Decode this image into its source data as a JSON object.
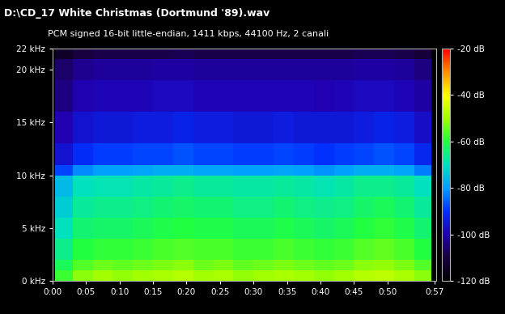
{
  "chart_data": {
    "type": "heatmap",
    "title": "D:\\CD_17 White Christmas (Dortmund '89).wav",
    "subtitle": "PCM signed 16-bit little-endian, 1411 kbps, 44100 Hz, 2 canali",
    "x_edges": [
      0,
      0.4,
      3,
      6,
      9,
      12,
      15,
      18,
      21,
      24,
      27,
      30,
      33,
      36,
      39,
      42,
      45,
      48,
      51,
      54,
      56.6,
      57.3
    ],
    "y_edges": [
      0,
      1,
      2,
      4,
      6,
      8,
      10,
      11,
      13,
      16,
      19,
      21,
      22
    ],
    "cells": [
      [
        -120,
        -58,
        -52,
        -50,
        -51,
        -50,
        -49,
        -48,
        -50,
        -49,
        -51,
        -50,
        -49,
        -50,
        -51,
        -50,
        -48,
        -47,
        -49,
        -52,
        -120
      ],
      [
        -120,
        -62,
        -56,
        -54,
        -55,
        -54,
        -53,
        -52,
        -54,
        -53,
        -55,
        -54,
        -53,
        -54,
        -55,
        -54,
        -52,
        -51,
        -53,
        -56,
        -120
      ],
      [
        -120,
        -66,
        -60,
        -59,
        -59,
        -58,
        -57,
        -56,
        -57,
        -57,
        -58,
        -58,
        -57,
        -58,
        -59,
        -58,
        -56,
        -55,
        -57,
        -60,
        -120
      ],
      [
        -120,
        -70,
        -64,
        -63,
        -63,
        -62,
        -61,
        -60,
        -61,
        -61,
        -62,
        -62,
        -61,
        -62,
        -63,
        -62,
        -60,
        -59,
        -61,
        -64,
        -120
      ],
      [
        -120,
        -73,
        -67,
        -66,
        -66,
        -65,
        -64,
        -63,
        -64,
        -64,
        -65,
        -65,
        -64,
        -65,
        -66,
        -65,
        -63,
        -62,
        -64,
        -67,
        -120
      ],
      [
        -120,
        -76,
        -70,
        -69,
        -69,
        -68,
        -67,
        -66,
        -67,
        -67,
        -68,
        -68,
        -67,
        -68,
        -69,
        -68,
        -66,
        -66,
        -67,
        -70,
        -120
      ],
      [
        -120,
        -88,
        -82,
        -80,
        -80,
        -79,
        -78,
        -78,
        -79,
        -79,
        -80,
        -80,
        -79,
        -80,
        -81,
        -80,
        -78,
        -78,
        -79,
        -83,
        -120
      ],
      [
        -120,
        -96,
        -91,
        -89,
        -89,
        -88,
        -88,
        -87,
        -88,
        -88,
        -89,
        -89,
        -88,
        -89,
        -90,
        -89,
        -88,
        -87,
        -88,
        -92,
        -120
      ],
      [
        -120,
        -100,
        -96,
        -95,
        -95,
        -94,
        -94,
        -93,
        -94,
        -94,
        -95,
        -95,
        -94,
        -95,
        -95,
        -95,
        -94,
        -93,
        -94,
        -97,
        -120
      ],
      [
        -120,
        -104,
        -100,
        -99,
        -99,
        -99,
        -98,
        -98,
        -99,
        -99,
        -99,
        -99,
        -99,
        -99,
        -100,
        -99,
        -98,
        -98,
        -99,
        -101,
        -120
      ],
      [
        -120,
        -106,
        -103,
        -102,
        -102,
        -102,
        -101,
        -101,
        -102,
        -102,
        -102,
        -102,
        -102,
        -102,
        -102,
        -102,
        -101,
        -101,
        -102,
        -104,
        -120
      ],
      [
        -120,
        -114,
        -110,
        -109,
        -109,
        -109,
        -109,
        -108,
        -109,
        -109,
        -109,
        -109,
        -109,
        -109,
        -109,
        -109,
        -108,
        -108,
        -109,
        -111,
        -120
      ]
    ],
    "xlim": [
      0,
      57.3
    ],
    "xticks": [
      {
        "value": 0,
        "label": "0:00"
      },
      {
        "value": 5,
        "label": "0:05"
      },
      {
        "value": 10,
        "label": "0:10"
      },
      {
        "value": 15,
        "label": "0:15"
      },
      {
        "value": 20,
        "label": "0:20"
      },
      {
        "value": 25,
        "label": "0:25"
      },
      {
        "value": 30,
        "label": "0:30"
      },
      {
        "value": 35,
        "label": "0:35"
      },
      {
        "value": 40,
        "label": "0:40"
      },
      {
        "value": 45,
        "label": "0:45"
      },
      {
        "value": 50,
        "label": "0:50"
      },
      {
        "value": 57,
        "label": "0:57"
      }
    ],
    "ylim": [
      0,
      22
    ],
    "yticks": [
      {
        "value": 0,
        "label": "0 kHz"
      },
      {
        "value": 5,
        "label": "5 kHz"
      },
      {
        "value": 10,
        "label": "10 kHz"
      },
      {
        "value": 15,
        "label": "15 kHz"
      },
      {
        "value": 20,
        "label": "20 kHz"
      },
      {
        "value": 22,
        "label": "22 kHz"
      }
    ],
    "colorbar": {
      "range": [
        -120,
        -20
      ],
      "ticks": [
        {
          "value": -20,
          "label": "-20 dB"
        },
        {
          "value": -40,
          "label": "-40 dB"
        },
        {
          "value": -60,
          "label": "-60 dB"
        },
        {
          "value": -80,
          "label": "-80 dB"
        },
        {
          "value": -100,
          "label": "-100 dB"
        },
        {
          "value": -120,
          "label": "-120 dB"
        }
      ]
    }
  }
}
